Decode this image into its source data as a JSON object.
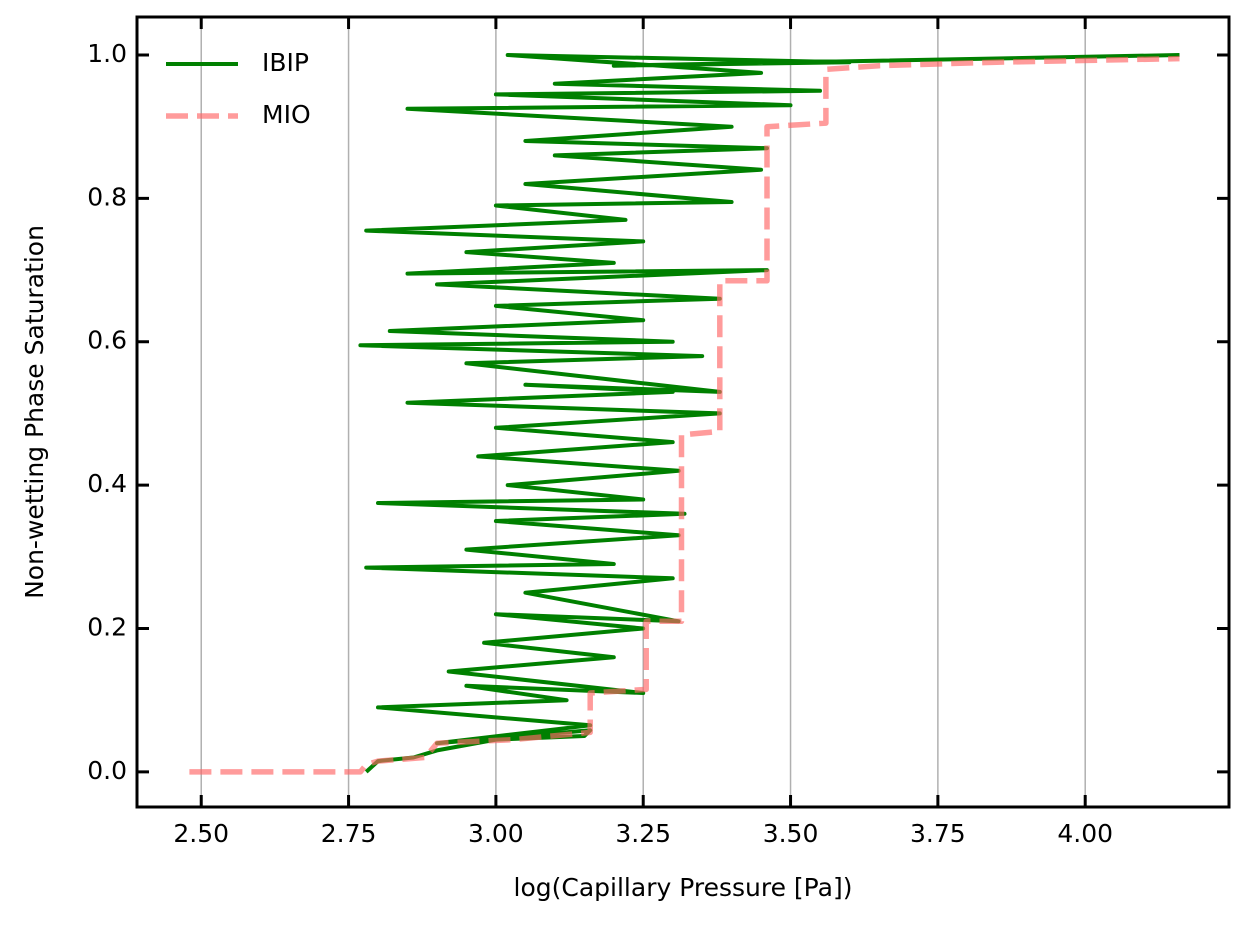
{
  "chart_data": {
    "type": "line",
    "xlabel": "log(Capillary Pressure [Pa])",
    "ylabel": "Non-wetting Phase Saturation",
    "xlim": [
      2.391,
      4.244
    ],
    "ylim": [
      -0.049,
      1.053
    ],
    "xticks": [
      {
        "value": 2.5,
        "label": "2.50"
      },
      {
        "value": 2.75,
        "label": "2.75"
      },
      {
        "value": 3.0,
        "label": "3.00"
      },
      {
        "value": 3.25,
        "label": "3.25"
      },
      {
        "value": 3.5,
        "label": "3.50"
      },
      {
        "value": 3.75,
        "label": "3.75"
      },
      {
        "value": 4.0,
        "label": "4.00"
      }
    ],
    "yticks": [
      {
        "value": 0.0,
        "label": "0.0"
      },
      0.2,
      0.4,
      0.6,
      0.8,
      {
        "value": 1.0,
        "label": "1.0"
      }
    ],
    "grid": "x",
    "legend": "upper left",
    "series": [
      {
        "name": "IBIP",
        "color": "#008000",
        "dashed": false,
        "x": [
          2.78,
          2.8,
          2.86,
          2.9,
          3.0,
          3.15,
          3.16,
          2.9,
          3.16,
          2.8,
          3.12,
          2.95,
          3.25,
          2.92,
          3.2,
          2.98,
          3.25,
          3.0,
          3.31,
          3.05,
          3.3,
          2.78,
          3.2,
          2.95,
          3.31,
          3.0,
          3.32,
          2.8,
          3.25,
          3.02,
          3.31,
          2.97,
          3.3,
          3.0,
          3.38,
          2.85,
          3.3,
          3.05,
          3.38,
          2.95,
          3.35,
          2.77,
          3.3,
          2.82,
          3.25,
          3.0,
          3.38,
          2.9,
          3.46,
          2.85,
          3.2,
          2.95,
          3.25,
          2.78,
          3.22,
          3.0,
          3.4,
          3.05,
          3.45,
          3.1,
          3.46,
          3.05,
          3.4,
          2.85,
          3.5,
          3.0,
          3.55,
          3.1,
          3.45,
          3.02,
          3.6,
          3.2,
          4.16
        ],
        "values": [
          0.0,
          0.015,
          0.02,
          0.03,
          0.045,
          0.05,
          0.058,
          0.04,
          0.065,
          0.09,
          0.1,
          0.12,
          0.11,
          0.14,
          0.16,
          0.18,
          0.2,
          0.22,
          0.21,
          0.25,
          0.27,
          0.285,
          0.29,
          0.31,
          0.33,
          0.35,
          0.36,
          0.375,
          0.38,
          0.4,
          0.42,
          0.44,
          0.46,
          0.48,
          0.5,
          0.515,
          0.53,
          0.54,
          0.53,
          0.57,
          0.58,
          0.595,
          0.6,
          0.615,
          0.63,
          0.65,
          0.66,
          0.68,
          0.7,
          0.695,
          0.71,
          0.725,
          0.74,
          0.755,
          0.77,
          0.79,
          0.795,
          0.82,
          0.84,
          0.86,
          0.87,
          0.88,
          0.9,
          0.925,
          0.93,
          0.945,
          0.95,
          0.96,
          0.975,
          1.0,
          0.99,
          0.985,
          1.0
        ]
      },
      {
        "name": "MIO",
        "color": "#ff6666",
        "dashed": true,
        "x": [
          2.48,
          2.77,
          2.78,
          2.8,
          2.88,
          2.9,
          3.03,
          3.16,
          3.16,
          3.255,
          3.255,
          3.315,
          3.315,
          3.38,
          3.38,
          3.46,
          3.46,
          3.56,
          3.56,
          3.65,
          3.85,
          4.16
        ],
        "values": [
          0.0,
          0.0,
          0.01,
          0.015,
          0.02,
          0.04,
          0.045,
          0.055,
          0.11,
          0.115,
          0.21,
          0.21,
          0.47,
          0.475,
          0.685,
          0.685,
          0.9,
          0.905,
          0.98,
          0.985,
          0.99,
          0.995
        ]
      }
    ]
  }
}
